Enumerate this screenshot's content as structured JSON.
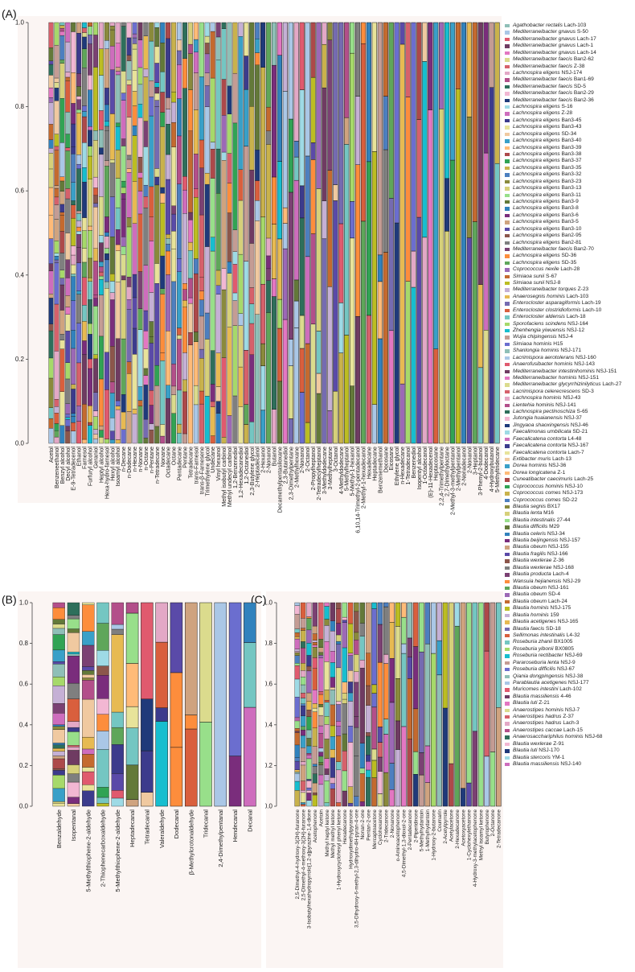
{
  "panel_labels": [
    "(A)",
    "(B)",
    "(C)"
  ],
  "palette": [
    "#8fbfb7",
    "#e3a8c6",
    "#3c3b8c",
    "#c9b24c",
    "#7a2d7c",
    "#5fa65a",
    "#d95f3d",
    "#aac7e6",
    "#b34f8a",
    "#e8e39a",
    "#4d7fbf",
    "#cfa37f",
    "#9c69b6",
    "#74c6c2",
    "#e05a6e",
    "#2e6f5b",
    "#f0c9a0",
    "#8a8a3c",
    "#5a4aa8",
    "#c46a2f",
    "#a6d96a",
    "#6f3b62",
    "#f2b7d3",
    "#39a0c8",
    "#d6d07a",
    "#8c564b",
    "#bcbd22",
    "#17becf",
    "#e377c2",
    "#1f3a7a",
    "#ffbb78",
    "#98df8a",
    "#7f7f7f",
    "#c5b0d5",
    "#c49c94",
    "#dbdb8d",
    "#9edae5",
    "#ad494a",
    "#637939",
    "#7b4173",
    "#e7ba52",
    "#6b6ecf",
    "#d6616b",
    "#ce6dbd",
    "#31a354",
    "#3182bd",
    "#fd8d3c",
    "#756bb1"
  ],
  "legend": [
    {
      "sp": "Agathobacter rectalis",
      "st": "Lach-103"
    },
    {
      "sp": "Mediterraneibacter gnavus",
      "st": "S-50"
    },
    {
      "sp": "Mediterraneibacter gnavus",
      "st": "Lach-17"
    },
    {
      "sp": "Mediterraneibacter gnavus",
      "st": "Lach-1"
    },
    {
      "sp": "Mediterraneibacter gnavus",
      "st": "Lach-14"
    },
    {
      "sp": "Mediterraneibacter faecis",
      "st": "Ban2-62"
    },
    {
      "sp": "Mediterraneibacter faecis",
      "st": "Z-38"
    },
    {
      "sp": "Lachnospira eligens",
      "st": "NSJ-174"
    },
    {
      "sp": "Mediterraneibacter faecis",
      "st": "Ban1-69"
    },
    {
      "sp": "Mediterraneibacter faecis",
      "st": "SD-5"
    },
    {
      "sp": "Mediterraneibacter faecis",
      "st": "Ban2-29"
    },
    {
      "sp": "Mediterraneibacter faecis",
      "st": "Ban2-36"
    },
    {
      "sp": "Lachnospira eligens",
      "st": "S-16"
    },
    {
      "sp": "Lachnospira eligens",
      "st": "Z-28"
    },
    {
      "sp": "Lachnospira eligens",
      "st": "Ban3-45"
    },
    {
      "sp": "Lachnospira eligens",
      "st": "Ban3-43"
    },
    {
      "sp": "Lachnospira eligens",
      "st": "SD-34"
    },
    {
      "sp": "Lachnospira eligens",
      "st": "Ban3-40"
    },
    {
      "sp": "Lachnospira eligens",
      "st": "Ban3-39"
    },
    {
      "sp": "Lachnospira eligens",
      "st": "Ban3-38"
    },
    {
      "sp": "Lachnospira eligens",
      "st": "Ban3-37"
    },
    {
      "sp": "Lachnospira eligens",
      "st": "Ban3-35"
    },
    {
      "sp": "Lachnospira eligens",
      "st": "Ban3-32"
    },
    {
      "sp": "Lachnospira eligens",
      "st": "Ban3-23"
    },
    {
      "sp": "Lachnospira eligens",
      "st": "Ban3-13"
    },
    {
      "sp": "Lachnospira eligens",
      "st": "Ban3-11"
    },
    {
      "sp": "Lachnospira eligens",
      "st": "Ban3-9"
    },
    {
      "sp": "Lachnospira eligens",
      "st": "Ban3-8"
    },
    {
      "sp": "Lachnospira eligens",
      "st": "Ban3-6"
    },
    {
      "sp": "Lachnospira eligens",
      "st": "Ban3-5"
    },
    {
      "sp": "Lachnospira eligens",
      "st": "Ban3-10"
    },
    {
      "sp": "Lachnospira eligens",
      "st": "Ban2-95"
    },
    {
      "sp": "Lachnospira eligens",
      "st": "Ban2-81"
    },
    {
      "sp": "Mediterraneibacter faecis",
      "st": "Ban2-70"
    },
    {
      "sp": "Lachnospira eligens",
      "st": "SD-36"
    },
    {
      "sp": "Lachnospira eligens",
      "st": "SD-35"
    },
    {
      "sp": "Coprococcus nexile",
      "st": "Lach-28"
    },
    {
      "sp": "Simiaoa sunii",
      "st": "S-67"
    },
    {
      "sp": "Simiaoa sunii",
      "st": "NSJ-8"
    },
    {
      "sp": "Mediterraneibacter torques",
      "st": "Z-23"
    },
    {
      "sp": "Anaerosegnis hominis",
      "st": "Lach-103"
    },
    {
      "sp": "Enterocloster asparagiformis",
      "st": "Lach-19"
    },
    {
      "sp": "Enterocloster clostridioformis",
      "st": "Lach-10"
    },
    {
      "sp": "Enterocloster aldensis",
      "st": "Lach-18"
    },
    {
      "sp": "Sporofaciens scindens",
      "st": "NSJ-164"
    },
    {
      "sp": "Zhenhengia yiwuensis",
      "st": "NSJ-12"
    },
    {
      "sp": "Wujia chipingensis",
      "st": "NSJ-4"
    },
    {
      "sp": "Simiaoa hominis",
      "st": "H15"
    },
    {
      "sp": "Shanlongia hominis",
      "st": "NSJ-171"
    },
    {
      "sp": "Lacrimispora aerotolerans",
      "st": "NSJ-160"
    },
    {
      "sp": "Anaerofusibacter hominis",
      "st": "NSJ-143"
    },
    {
      "sp": "Mediterraneibacter intestinihominis",
      "st": "NSJ-151"
    },
    {
      "sp": "Mediterraneibacter hominis",
      "st": "NSJ-151"
    },
    {
      "sp": "Mediterraneibacter glycyrrhizinilyticus",
      "st": "Lach-27"
    },
    {
      "sp": "Lacrimispora celerecrescens",
      "st": "SD-3"
    },
    {
      "sp": "Lachnospira hominis",
      "st": "NSJ-43"
    },
    {
      "sp": "Lientehia hominis",
      "st": "NSJ-141"
    },
    {
      "sp": "Lachnospira pectinoschiza",
      "st": "S-65"
    },
    {
      "sp": "Jutongia huaianensis",
      "st": "NSJ-37"
    },
    {
      "sp": "Jingyaoa shaoxingensis",
      "st": "NSJ-46"
    },
    {
      "sp": "Faecalimonas umbilicata",
      "st": "SD-21"
    },
    {
      "sp": "Faecalicatena contorta",
      "st": "L4-48"
    },
    {
      "sp": "Faecalicatena contorta",
      "st": "NSJ-167"
    },
    {
      "sp": "Faecalicatena contorta",
      "st": "Lach-7"
    },
    {
      "sp": "Extibacter muris",
      "st": "Lach-13"
    },
    {
      "sp": "Dorea hominis",
      "st": "NSJ-36"
    },
    {
      "sp": "Dorea longicatena",
      "st": "Z-1"
    },
    {
      "sp": "Cuneatibacter caecimuris",
      "st": "Lach-25"
    },
    {
      "sp": "Coprococcus hominis",
      "st": "NSJ-10"
    },
    {
      "sp": "Coprococcus comes",
      "st": "NSJ-173"
    },
    {
      "sp": "Coprococcus comes",
      "st": "SD-22"
    },
    {
      "sp": "Blautia segnis",
      "st": "BX17"
    },
    {
      "sp": "Blautia lenta",
      "st": "M16"
    },
    {
      "sp": "Blautia intestinalis",
      "st": "27-44"
    },
    {
      "sp": "Blautia difficilis",
      "st": "M29"
    },
    {
      "sp": "Blautia celeris",
      "st": "NSJ-34"
    },
    {
      "sp": "Blautia beijingensis",
      "st": "NSJ-157"
    },
    {
      "sp": "Blautia obeum",
      "st": "NSJ-155"
    },
    {
      "sp": "Blautia fragilis",
      "st": "NSJ-166"
    },
    {
      "sp": "Blautia wexlerae",
      "st": "Z-36"
    },
    {
      "sp": "Blautia wexlerae",
      "st": "NSJ-168"
    },
    {
      "sp": "Blautia producta",
      "st": "Lach-4"
    },
    {
      "sp": "Wansuia hejianensis",
      "st": "NSJ-29"
    },
    {
      "sp": "Blautia obeum",
      "st": "NSJ-161"
    },
    {
      "sp": "Blautia obeum",
      "st": "SD-4"
    },
    {
      "sp": "Blautia obeum",
      "st": "Lach-24"
    },
    {
      "sp": "Blautia hominis",
      "st": "NSJ-175"
    },
    {
      "sp": "Blautia hominis",
      "st": "159"
    },
    {
      "sp": "Blautia acetigenes",
      "st": "NSJ-165"
    },
    {
      "sp": "Blautia faecis",
      "st": "SD-18"
    },
    {
      "sp": "Sellimonas intestinalis",
      "st": "L4-32"
    },
    {
      "sp": "Roseburia zhanii",
      "st": "BX1005"
    },
    {
      "sp": "Roseburia yibonii",
      "st": "BX0805"
    },
    {
      "sp": "Roseburia rectibacter",
      "st": "NSJ-69"
    },
    {
      "sp": "Pararoseburia lenta",
      "st": "NSJ-9"
    },
    {
      "sp": "Roseburia difficilis",
      "st": "NSJ-67"
    },
    {
      "sp": "Qiania dongpingensis",
      "st": "NSJ-38"
    },
    {
      "sp": "Parablautia acetigenes",
      "st": "NSJ-177"
    },
    {
      "sp": "Muricomes intestini",
      "st": "Lach-102"
    },
    {
      "sp": "Blautia massiliensis",
      "st": "4-46"
    },
    {
      "sp": "Blautia luti",
      "st": "Z-21"
    },
    {
      "sp": "Anaerostipes hominis",
      "st": "NSJ-7"
    },
    {
      "sp": "Anaerostipes hadrus",
      "st": "Z-37"
    },
    {
      "sp": "Anaerostipes hadrus",
      "st": "Lach-3"
    },
    {
      "sp": "Anaerostipes caccae",
      "st": "Lach-15"
    },
    {
      "sp": "Anaerosacchariphilus hominis",
      "st": "NSJ-68"
    },
    {
      "sp": "Blautia wexlerae",
      "st": "Z-91"
    },
    {
      "sp": "Blautia luti",
      "st": "NSJ-170"
    },
    {
      "sp": "Blautia stercoris",
      "st": "YM-1"
    },
    {
      "sp": "Blautia massiliensis",
      "st": "NSJ-140"
    }
  ],
  "chart_data": [
    {
      "type": "bar",
      "stacked": true,
      "panel": "(A)",
      "ylim": [
        0,
        1
      ],
      "yticks": [
        "0.0",
        "0.2",
        "0.4",
        "0.6",
        "0.8",
        "1.0"
      ],
      "categories": [
        "Acetol",
        "Benzeneethanol",
        "Benzyl alcohol",
        "Decyl alcohol",
        "E-9-Tetradecenol",
        "Ethanol",
        "Farnesol",
        "Furfuryl alcohol",
        "Geraniol",
        "Heptyl alcohol",
        "Hexa-hydro-farnesol",
        "Hexyl alcohol",
        "Isoamyl alcohol",
        "n-Decane",
        "n-Dodecane",
        "n-Hexane",
        "n-Nonane",
        "n-Octane",
        "n-Pentane",
        "n-Tetradecane",
        "Nonane",
        "Octadecane",
        "Octane",
        "Pentadecane",
        "Pentane",
        "Tetradecane",
        "trans-Farnesol",
        "trans-β-Farnesene",
        "Trimethylene glycol",
        "Undecane",
        "Vinyl hexanol",
        "Methyl isobutyl carbinol",
        "Methyl undecyl carbinol",
        "1,2-Benzenediol",
        "1,2-Hexadecanediol",
        "1,2-Octanediol",
        "2,3-Butylene glycol",
        "2-Heptadecanol",
        "2-Hexanol",
        "2-Nonanol",
        "Butanol",
        "Decamethylpentasiloxane",
        "2,3-Butanediol",
        "2,3-Dimethylpentane",
        "2-Methylhexane",
        "2-Nonanol",
        "2-Octanol",
        "2-Propylheptanol",
        "2-Tetradecylheptanol",
        "3-Methyldodecane",
        "3-Methylheptane",
        "3-Octanol",
        "4-Methyldodecane",
        "5-Methylheptanol",
        "5-Methyl-1-hexanol",
        "6,10,14-Trimethyl-2-pentadecanol",
        "2-Methyl-1-hexadecanol",
        "Hexadecane",
        "Heptadecane",
        "Benzenemethanol",
        "Docosane",
        "Eicosane",
        "Ethylene glycol",
        "n-Hexadecane",
        "1-Tetradecanol",
        "Benzenediol",
        "Isopentyl alcohol",
        "1-Octadecanol",
        "(E)-11-Hexadecenol",
        "Heptacosane",
        "2,2,4-Trimethylpentane",
        "2,7-Dimethyloctane",
        "2-Methyl-3-methylpentanol",
        "2-Methylpentanol",
        "2-Nonadecanol",
        "2-Nonanol",
        "3-Heptanol",
        "3-Phenyl-2-butanol",
        "4-Dodecanol",
        "4-Hydroxybutanol",
        "5-Methyltridecane"
      ]
    },
    {
      "type": "bar",
      "stacked": true,
      "panel": "(B)",
      "ylim": [
        0,
        1
      ],
      "yticks": [
        "0.0",
        "0.2",
        "0.4",
        "0.6",
        "0.8",
        "1.0"
      ],
      "categories": [
        "Benzaldehyde",
        "Isopentanal",
        "5-Methylthiophene-2-aldehyde",
        "2-Thiophenecarboxaldehyde",
        "5-Methylthiophene-2-aldehyde",
        "Heptadecanal",
        "Tetradecanal",
        "Valeraldehyde",
        "Dodecanal",
        "β-Methylcrotonaldehyde",
        "Tridecanal",
        "2,4-Dimethylpentanal",
        "Hendecanal",
        "Decanal"
      ]
    },
    {
      "type": "bar",
      "stacked": true,
      "panel": "(C)",
      "ylim": [
        0,
        1
      ],
      "yticks": [
        "0.0",
        "0.2",
        "0.4",
        "0.6",
        "0.8",
        "1.0"
      ],
      "categories": [
        "2,5-Dimethyl-4-hydroxy-3(2H)-furanone",
        "2,5-Dimethyl-4-methoxy-3(2H)-furanone",
        "3-Isobutylhexahydropyrrolo[1,2-a]pyrazine-1,4-dione",
        "Acetophenone",
        "Acetoin",
        "Methyl heptyl ketone",
        "Methyl methyl ketone",
        "1-Hydroxycyclohexyl phenyl ketone",
        "Hexadecanone",
        "Hydroxydimethylpyranone",
        "3,5-Dihydroxy-6-methyl-2,3-dihydro-4H-pyran-4-one",
        "Nonan-2-one",
        "Pentan-2-one",
        "Mercaptoacetone",
        "Cyclohexanone",
        "2-Tridecanone",
        "2-Nonanone",
        "o-Aminoacetophenone",
        "4,5-Dimethyl-1,3-dioxol-2-one",
        "2-Pentadecanone",
        "2-Piperidinone",
        "5-Methylhydantoin",
        "1-Methylhydantoin",
        "1-Hydroxy-2-butanone",
        "Coumarin",
        "2-Acetylpyrrole",
        "Acetylacetone",
        "2-Hexadecanone",
        "Acetoxyacetone",
        "1-Cyclohexylethanone",
        "4-Hydroxy-3-methylacetophenone",
        "Methyl isoamyl ketone",
        "Butyrophenone",
        "2-Octanone",
        "2-Tetradecanone"
      ]
    }
  ]
}
